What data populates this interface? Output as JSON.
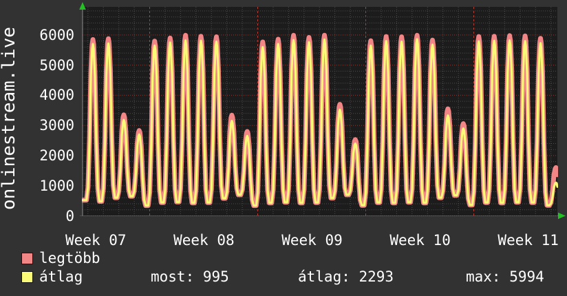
{
  "app": {
    "kind": "rrdtool-style traffic graph"
  },
  "colors": {
    "background": "#323232",
    "plot_background": "#1c1c1c",
    "grid_minor": "#4d4d4d",
    "grid_major_h": "#8f3a32",
    "grid_major_v": "#b2423a",
    "axis": "#8a8a8a",
    "arrow": "#22c022",
    "text": "#ffffff",
    "series_max": "#f28585",
    "series_avg": "#fafa78"
  },
  "y_axis": {
    "title": "onlinestream.live",
    "ticks": [
      {
        "label": "6000",
        "value": 6000
      },
      {
        "label": "5000",
        "value": 5000
      },
      {
        "label": "4000",
        "value": 4000
      },
      {
        "label": "3000",
        "value": 3000
      },
      {
        "label": "2000",
        "value": 2000
      },
      {
        "label": "1000",
        "value": 1000
      },
      {
        "label": "0",
        "value": 0
      }
    ]
  },
  "x_axis": {
    "labels": [
      "Week 07",
      "Week 08",
      "Week 09",
      "Week 10",
      "Week 11"
    ]
  },
  "legend": [
    {
      "label": "legtöbb",
      "color": "#f28585"
    },
    {
      "label": "átlag",
      "color": "#fafa78"
    }
  ],
  "stats": {
    "most": "most: 995",
    "atlag": "átlag: 2293",
    "max": "max: 5994"
  },
  "chart_data": {
    "type": "line",
    "title": "onlinestream.live",
    "x_ticks": [
      "Week 07",
      "Week 08",
      "Week 09",
      "Week 10",
      "Week 11"
    ],
    "y_ticks": [
      0,
      1000,
      2000,
      3000,
      4000,
      5000,
      6000
    ],
    "ylim": [
      0,
      6900
    ],
    "grid": {
      "major": "red dotted (weekly verticals, 1000-step horizontals)",
      "minor": "gray dotted (daily verticals, 200-step horizontals)"
    },
    "legend_position": "bottom-left",
    "x_structure": "one peak per day, ~31 days shown across weeks 07-11; weekday peaks high, weekend peaks low",
    "first_peak_day_offset": 0.67,
    "series": [
      {
        "name": "legtöbb",
        "color": "#f28585",
        "daily_peak_values": [
          5850,
          5880,
          3350,
          2830,
          5800,
          5900,
          5990,
          5960,
          5940,
          3340,
          2800,
          5770,
          5860,
          5990,
          5920,
          5994,
          3700,
          2530,
          5810,
          5950,
          5940,
          5990,
          5830,
          3550,
          3060,
          5950,
          5960,
          5980,
          5970,
          5890,
          1600
        ]
      },
      {
        "name": "átlag",
        "color": "#fafa78",
        "daily_peak_values": [
          5700,
          5720,
          3180,
          2700,
          5650,
          5750,
          5820,
          5810,
          5780,
          3150,
          2650,
          5600,
          5700,
          5830,
          5760,
          5850,
          3520,
          2400,
          5650,
          5800,
          5780,
          5860,
          5680,
          3330,
          2900,
          5790,
          5810,
          5820,
          5800,
          5730,
          1100
        ]
      }
    ],
    "trough_values": [
      520,
      480,
      600,
      650,
      340,
      440,
      460,
      430,
      440,
      580,
      700,
      340,
      430,
      450,
      430,
      440,
      590,
      700,
      350,
      440,
      430,
      450,
      430,
      600,
      680,
      360,
      440,
      430,
      450,
      440,
      350,
      420
    ],
    "summary": {
      "most": 995,
      "átlag": 2293,
      "max": 5994
    }
  }
}
